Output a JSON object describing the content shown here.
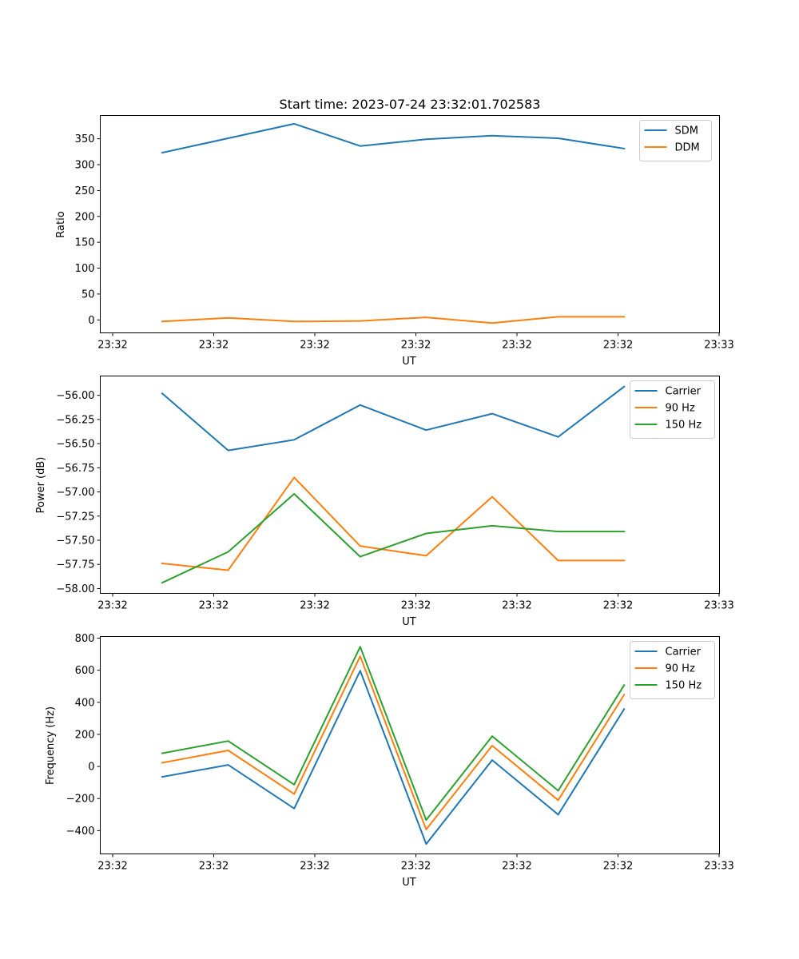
{
  "figure_title": "Start time: 2023-07-24 23:32:01.702583",
  "chart_data": [
    {
      "type": "line",
      "title": "Start time: 2023-07-24 23:32:01.702583",
      "xlabel": "UT",
      "ylabel": "Ratio",
      "x_tick_labels": [
        "23:32",
        "23:32",
        "23:32",
        "23:32",
        "23:32",
        "23:32",
        "23:33"
      ],
      "y_ticks": [
        0,
        50,
        100,
        150,
        200,
        250,
        300,
        350
      ],
      "ylim": [
        -25,
        395
      ],
      "legend": "upper right",
      "series": [
        {
          "name": "SDM",
          "color": "#1f77b4",
          "values": [
            323,
            351,
            379,
            336,
            349,
            356,
            351,
            331
          ]
        },
        {
          "name": "DDM",
          "color": "#ff7f0e",
          "values": [
            -3,
            4,
            -3,
            -2,
            5,
            -6,
            6,
            6
          ]
        }
      ]
    },
    {
      "type": "line",
      "title": "",
      "xlabel": "UT",
      "ylabel": "Power (dB)",
      "x_tick_labels": [
        "23:32",
        "23:32",
        "23:32",
        "23:32",
        "23:32",
        "23:32",
        "23:33"
      ],
      "y_ticks": [
        -58.0,
        -57.75,
        -57.5,
        -57.25,
        -57.0,
        -56.75,
        -56.5,
        -56.25,
        -56.0
      ],
      "y_tick_labels": [
        "−58.00",
        "−57.75",
        "−57.50",
        "−57.25",
        "−57.00",
        "−56.75",
        "−56.50",
        "−56.25",
        "−56.00"
      ],
      "ylim": [
        -58.05,
        -55.8
      ],
      "legend": "upper right",
      "series": [
        {
          "name": "Carrier",
          "color": "#1f77b4",
          "values": [
            -55.98,
            -56.57,
            -56.46,
            -56.1,
            -56.36,
            -56.19,
            -56.43,
            -55.91
          ]
        },
        {
          "name": "90 Hz",
          "color": "#ff7f0e",
          "values": [
            -57.74,
            -57.81,
            -56.85,
            -57.56,
            -57.66,
            -57.05,
            -57.71,
            -57.71
          ]
        },
        {
          "name": "150 Hz",
          "color": "#2ca02c",
          "values": [
            -57.94,
            -57.62,
            -57.02,
            -57.67,
            -57.43,
            -57.35,
            -57.41,
            -57.41
          ]
        }
      ]
    },
    {
      "type": "line",
      "title": "",
      "xlabel": "UT",
      "ylabel": "Frequency (Hz)",
      "x_tick_labels": [
        "23:32",
        "23:32",
        "23:32",
        "23:32",
        "23:32",
        "23:32",
        "23:33"
      ],
      "y_ticks": [
        -400,
        -200,
        0,
        200,
        400,
        600,
        800
      ],
      "y_tick_labels": [
        "−400",
        "−200",
        "0",
        "200",
        "400",
        "600",
        "800"
      ],
      "ylim": [
        -545,
        810
      ],
      "legend": "upper right",
      "series": [
        {
          "name": "Carrier",
          "color": "#1f77b4",
          "values": [
            -65,
            10,
            -262,
            597,
            -483,
            40,
            -300,
            358
          ]
        },
        {
          "name": "90 Hz",
          "color": "#ff7f0e",
          "values": [
            23,
            100,
            -172,
            687,
            -393,
            130,
            -210,
            448
          ]
        },
        {
          "name": "150 Hz",
          "color": "#2ca02c",
          "values": [
            82,
            159,
            -113,
            746,
            -334,
            189,
            -151,
            507
          ]
        }
      ]
    }
  ]
}
